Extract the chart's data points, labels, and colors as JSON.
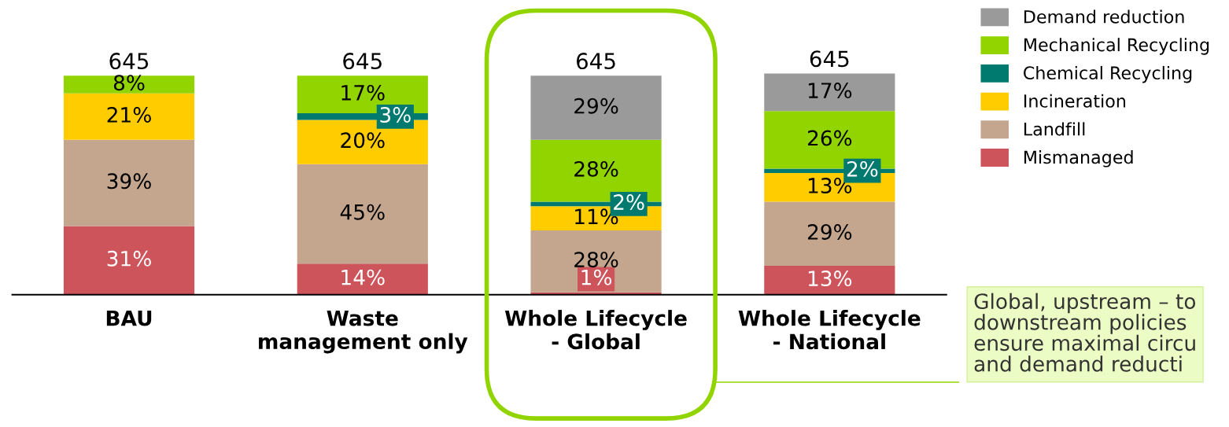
{
  "chart_data": {
    "type": "bar",
    "stacked": true,
    "categories": [
      "BAU",
      "Waste\nmanagement only",
      "Whole Lifecycle\n- Global",
      "Whole Lifecycle\n- National"
    ],
    "series": [
      {
        "name": "Mismanaged",
        "color": "#cd545b",
        "values": [
          31,
          14,
          1,
          13
        ],
        "value_labels": [
          "31%",
          "14%",
          "1%",
          "13%"
        ]
      },
      {
        "name": "Landfill",
        "color": "#c4a68e",
        "values": [
          39,
          45,
          28,
          29
        ],
        "value_labels": [
          "39%",
          "45%",
          "28%",
          "29%"
        ]
      },
      {
        "name": "Incineration",
        "color": "#ffcc00",
        "values": [
          21,
          20,
          11,
          13
        ],
        "value_labels": [
          "21%",
          "20%",
          "11%",
          "13%"
        ]
      },
      {
        "name": "Chemical Recycling",
        "color": "#007a6e",
        "values": [
          null,
          3,
          2,
          2
        ],
        "value_labels": [
          null,
          "3%",
          "2%",
          "2%"
        ]
      },
      {
        "name": "Mechanical Recycling",
        "color": "#92d400",
        "values": [
          8,
          17,
          28,
          26
        ],
        "value_labels": [
          "8%",
          "17%",
          "28%",
          "26%"
        ]
      },
      {
        "name": "Demand reduction",
        "color": "#9a9a9a",
        "values": [
          null,
          null,
          29,
          17
        ],
        "value_labels": [
          null,
          null,
          "29%",
          "17%"
        ]
      }
    ],
    "legend": "right",
    "annotations": [
      {
        "text": "645",
        "x": "BAU",
        "y": 99
      },
      {
        "text": "645",
        "x": "Waste\nmanagement only",
        "y": 99
      },
      {
        "text": "645",
        "x": "Whole Lifecycle\n- Global",
        "y": 99
      },
      {
        "text": "645",
        "x": "Whole Lifecycle\n- National",
        "y": 100
      },
      "Global, upstream – to\ndownstream policies\nensure maximal circu\nand demand reducti"
    ]
  }
}
